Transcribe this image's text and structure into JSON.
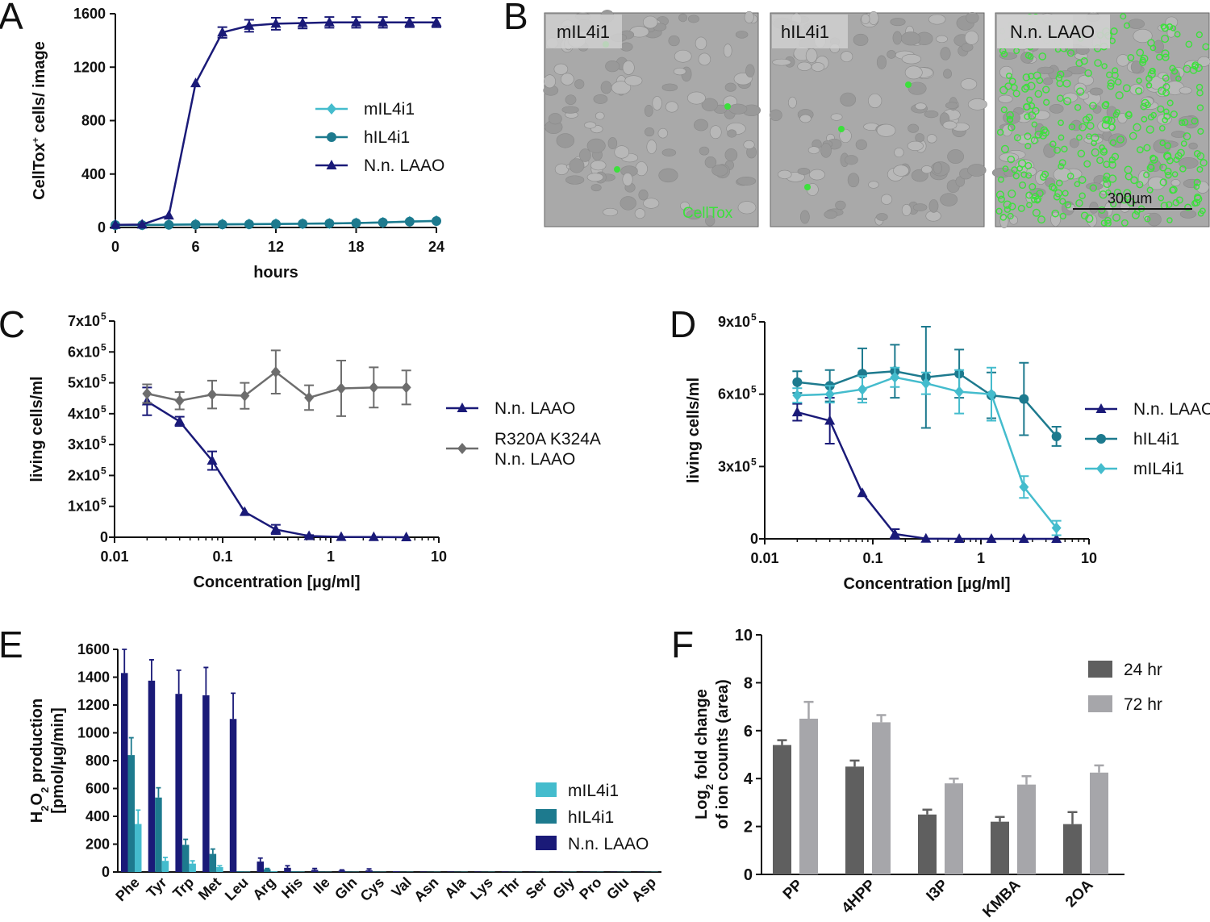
{
  "panels": {
    "A": {
      "label": "A"
    },
    "B": {
      "label": "B",
      "images": [
        "mIL4i1",
        "hIL4i1",
        "N.n. LAAO"
      ],
      "stain_label": "CellTox",
      "scalebar_label": "300µm"
    },
    "C": {
      "label": "C"
    },
    "D": {
      "label": "D"
    },
    "E": {
      "label": "E"
    },
    "F": {
      "label": "F"
    }
  },
  "colors": {
    "mIL4i1": "#44bccd",
    "hIL4i1": "#1d7a8e",
    "LAAO": "#1a1a78",
    "mutant": "#6d6d6d",
    "hr24": "#5f5f5f",
    "hr72": "#a6a6aa",
    "celltox": "#3ce03c"
  },
  "chart_data": [
    {
      "id": "A",
      "type": "line",
      "xlabel": "hours",
      "ylabel": "CellTox+ cells/ image",
      "ylabel_main": "CellTox",
      "ylabel_sup": "+",
      "ylabel_rest": " cells/ image",
      "xlim": [
        0,
        24
      ],
      "ylim": [
        0,
        1600
      ],
      "xticks": [
        0,
        6,
        12,
        18,
        24
      ],
      "yticks": [
        0,
        400,
        800,
        1200,
        1600
      ],
      "x": [
        0,
        2,
        4,
        6,
        8,
        10,
        12,
        14,
        16,
        18,
        20,
        22,
        24
      ],
      "series": [
        {
          "name": "mIL4i1",
          "marker": "diamond",
          "values": [
            20,
            20,
            22,
            24,
            25,
            26,
            27,
            28,
            30,
            33,
            38,
            45,
            50
          ],
          "err": [
            0,
            0,
            0,
            0,
            0,
            0,
            0,
            0,
            0,
            0,
            0,
            0,
            0
          ]
        },
        {
          "name": "hIL4i1",
          "marker": "circle",
          "values": [
            18,
            18,
            20,
            22,
            23,
            24,
            26,
            28,
            30,
            33,
            38,
            44,
            48
          ],
          "err": [
            0,
            0,
            0,
            0,
            0,
            0,
            0,
            0,
            0,
            0,
            0,
            0,
            0
          ]
        },
        {
          "name": "N.n. LAAO",
          "marker": "triangle",
          "values": [
            20,
            22,
            90,
            1080,
            1460,
            1510,
            1525,
            1530,
            1535,
            1535,
            1535,
            1535,
            1535
          ],
          "err": [
            0,
            0,
            0,
            0,
            40,
            45,
            45,
            40,
            40,
            40,
            40,
            35,
            35
          ]
        }
      ]
    },
    {
      "id": "C",
      "type": "line",
      "xscale": "log",
      "xlabel": "Concentration [µg/ml]",
      "ylabel": "living cells/ml",
      "xlim": [
        0.01,
        10
      ],
      "ylim": [
        0,
        700000
      ],
      "xticks": [
        0.01,
        0.1,
        1,
        10
      ],
      "xtick_labels": [
        "0.01",
        "0.1",
        "1",
        "10"
      ],
      "yticks": [
        0,
        100000,
        200000,
        300000,
        400000,
        500000,
        600000,
        700000
      ],
      "ytick_mant": [
        "0",
        "1x10",
        "2x10",
        "3x10",
        "4x10",
        "5x10",
        "6x10",
        "7x10"
      ],
      "ytick_exp": "5",
      "x": [
        0.02,
        0.04,
        0.08,
        0.16,
        0.31,
        0.63,
        1.25,
        2.5,
        5
      ],
      "series": [
        {
          "name": "N.n. LAAO",
          "marker": "triangle",
          "values": [
            440000,
            375000,
            248000,
            82000,
            25000,
            4000,
            1000,
            500,
            0
          ],
          "err": [
            45000,
            15000,
            30000,
            0,
            15000,
            3000,
            0,
            0,
            0
          ]
        },
        {
          "name": "R320A K324A N.n. LAAO",
          "legend_lines": [
            "R320A K324A",
            "N.n. LAAO"
          ],
          "marker": "diamond",
          "values": [
            465000,
            442000,
            462000,
            458000,
            535000,
            452000,
            482000,
            485000,
            485000
          ],
          "err": [
            30000,
            28000,
            45000,
            42000,
            70000,
            40000,
            90000,
            65000,
            55000
          ]
        }
      ]
    },
    {
      "id": "D",
      "type": "line",
      "xscale": "log",
      "xlabel": "Concentration [µg/ml]",
      "ylabel": "living cells/ml",
      "xlim": [
        0.01,
        10
      ],
      "ylim": [
        0,
        900000
      ],
      "xticks": [
        0.01,
        0.1,
        1,
        10
      ],
      "xtick_labels": [
        "0.01",
        "0.1",
        "1",
        "10"
      ],
      "yticks": [
        0,
        300000,
        600000,
        900000
      ],
      "ytick_mant": [
        "0",
        "3x10",
        "6x10",
        "9x10"
      ],
      "ytick_exp": "5",
      "x": [
        0.02,
        0.04,
        0.08,
        0.16,
        0.31,
        0.63,
        1.25,
        2.5,
        5
      ],
      "series": [
        {
          "name": "N.n. LAAO",
          "marker": "triangle",
          "values": [
            525000,
            490000,
            190000,
            20000,
            1000,
            0,
            0,
            0,
            0
          ],
          "err": [
            35000,
            95000,
            0,
            20000,
            0,
            0,
            0,
            0,
            0
          ]
        },
        {
          "name": "hIL4i1",
          "marker": "circle",
          "values": [
            650000,
            635000,
            685000,
            695000,
            670000,
            685000,
            595000,
            580000,
            425000
          ],
          "err": [
            45000,
            65000,
            105000,
            110000,
            210000,
            100000,
            95000,
            150000,
            40000
          ]
        },
        {
          "name": "mIL4i1",
          "marker": "diamond",
          "values": [
            595000,
            600000,
            620000,
            670000,
            645000,
            610000,
            600000,
            215000,
            45000
          ],
          "err": [
            30000,
            35000,
            55000,
            40000,
            45000,
            90000,
            110000,
            45000,
            30000
          ]
        }
      ]
    },
    {
      "id": "E",
      "type": "bar",
      "ylabel_lines": [
        "H2O2 production",
        "[pmol/µg/min]"
      ],
      "ylim": [
        0,
        1600
      ],
      "yticks": [
        0,
        200,
        400,
        600,
        800,
        1000,
        1200,
        1400,
        1600
      ],
      "categories": [
        "Phe",
        "Tyr",
        "Trp",
        "Met",
        "Leu",
        "Arg",
        "His",
        "Ile",
        "Gln",
        "Cys",
        "Val",
        "Asn",
        "Ala",
        "Lys",
        "Thr",
        "Ser",
        "Gly",
        "Pro",
        "Glu",
        "Asp"
      ],
      "series": [
        {
          "name": "N.n. LAAO",
          "values": [
            1430,
            1375,
            1280,
            1270,
            1100,
            75,
            30,
            15,
            10,
            12,
            5,
            3,
            3,
            3,
            3,
            2,
            2,
            2,
            2,
            2
          ],
          "err": [
            170,
            150,
            170,
            200,
            185,
            25,
            15,
            10,
            5,
            10,
            0,
            0,
            0,
            0,
            0,
            0,
            0,
            0,
            0,
            0
          ]
        },
        {
          "name": "hIL4i1",
          "values": [
            840,
            535,
            195,
            130,
            5,
            20,
            5,
            3,
            3,
            3,
            2,
            2,
            2,
            2,
            2,
            2,
            2,
            2,
            2,
            2
          ],
          "err": [
            125,
            70,
            40,
            35,
            0,
            5,
            0,
            0,
            0,
            0,
            0,
            0,
            0,
            0,
            0,
            0,
            0,
            0,
            0,
            0
          ]
        },
        {
          "name": "mIL4i1",
          "values": [
            345,
            80,
            60,
            35,
            3,
            5,
            3,
            2,
            2,
            2,
            2,
            2,
            2,
            2,
            2,
            2,
            2,
            2,
            2,
            2
          ],
          "err": [
            100,
            25,
            20,
            10,
            0,
            0,
            0,
            0,
            0,
            0,
            0,
            0,
            0,
            0,
            0,
            0,
            0,
            0,
            0,
            0
          ]
        }
      ]
    },
    {
      "id": "F",
      "type": "bar",
      "ylabel_lines": [
        "Log2 fold change",
        "of ion counts (area)"
      ],
      "ylim": [
        0,
        10
      ],
      "yticks": [
        0,
        2,
        4,
        6,
        8,
        10
      ],
      "categories": [
        "PP",
        "4HPP",
        "I3P",
        "KMBA",
        "2OA"
      ],
      "series": [
        {
          "name": "24 hr",
          "values": [
            5.4,
            4.5,
            2.5,
            2.2,
            2.1
          ],
          "err": [
            0.2,
            0.25,
            0.2,
            0.2,
            0.5
          ]
        },
        {
          "name": "72 hr",
          "values": [
            6.5,
            6.35,
            3.8,
            3.75,
            4.25
          ],
          "err": [
            0.7,
            0.3,
            0.2,
            0.35,
            0.3
          ]
        }
      ]
    }
  ]
}
